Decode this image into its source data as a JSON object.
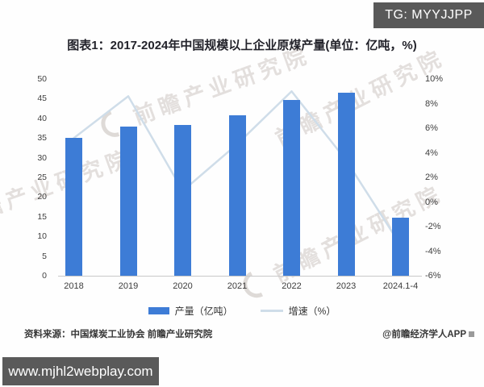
{
  "badges": {
    "tg_label": "TG: MYYJJPP",
    "url_label": "www.mjhl2webplay.com"
  },
  "watermark": {
    "text": "前瞻产业研究院"
  },
  "chart_data": {
    "type": "bar",
    "title": "图表1：2017-2024年中国规模以上企业原煤产量(单位：亿吨，%)",
    "categories": [
      "2018",
      "2019",
      "2020",
      "2021",
      "2022",
      "2023",
      "2024.1-4"
    ],
    "series": [
      {
        "name": "产量（亿吨）",
        "type": "bar",
        "axis": "left",
        "color": "#3d7cd6",
        "values": [
          35.0,
          38.0,
          38.4,
          40.7,
          44.6,
          46.6,
          14.8
        ]
      },
      {
        "name": "增速（%）",
        "type": "line",
        "axis": "right",
        "color": "#cfdde9",
        "values": [
          5.2,
          8.6,
          0.9,
          4.7,
          9.0,
          3.4,
          -3.5
        ]
      }
    ],
    "y_left": {
      "min": 0,
      "max": 50,
      "ticks": [
        0,
        5,
        10,
        15,
        20,
        25,
        30,
        35,
        40,
        45,
        50
      ]
    },
    "y_right": {
      "min": -6,
      "max": 10,
      "tick_labels": [
        "10%",
        "8%",
        "6%",
        "4%",
        "2%",
        "0%",
        "-2%",
        "-4%",
        "-6%"
      ],
      "tick_values": [
        10,
        8,
        6,
        4,
        2,
        0,
        -2,
        -4,
        -6
      ]
    },
    "grid": false,
    "legend_position": "bottom"
  },
  "footer": {
    "source": "资料来源：中国煤炭工业协会 前瞻产业研究院",
    "credit": "@前瞻经济学人APP"
  }
}
